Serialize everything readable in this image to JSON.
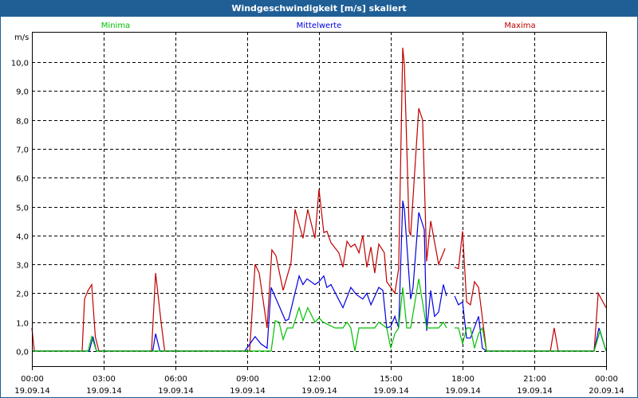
{
  "window": {
    "title": "Windgeschwindigkeit [m/s] skaliert"
  },
  "chart_data": {
    "type": "line",
    "title": "Windgeschwindigkeit [m/s] skaliert",
    "ylabel": "m/s",
    "xlabel": "",
    "ylim": [
      0,
      10.5
    ],
    "xlim_hours": [
      0,
      24
    ],
    "grid": true,
    "y_ticks": [
      {
        "v": 0,
        "label": "0,0"
      },
      {
        "v": 1,
        "label": "1,0"
      },
      {
        "v": 2,
        "label": "2,0"
      },
      {
        "v": 3,
        "label": "3,0"
      },
      {
        "v": 4,
        "label": "4,0"
      },
      {
        "v": 5,
        "label": "5,0"
      },
      {
        "v": 6,
        "label": "6,0"
      },
      {
        "v": 7,
        "label": "7,0"
      },
      {
        "v": 8,
        "label": "8,0"
      },
      {
        "v": 9,
        "label": "9,0"
      },
      {
        "v": 10,
        "label": "10,0"
      }
    ],
    "x_ticks": [
      {
        "h": 0,
        "time": "00:00",
        "date": "19.09.14"
      },
      {
        "h": 3,
        "time": "03:00",
        "date": "19.09.14"
      },
      {
        "h": 6,
        "time": "06:00",
        "date": "19.09.14"
      },
      {
        "h": 9,
        "time": "09:00",
        "date": "19.09.14"
      },
      {
        "h": 12,
        "time": "12:00",
        "date": "19.09.14"
      },
      {
        "h": 15,
        "time": "15:00",
        "date": "19.09.14"
      },
      {
        "h": 18,
        "time": "18:00",
        "date": "19.09.14"
      },
      {
        "h": 21,
        "time": "21:00",
        "date": "19.09.14"
      },
      {
        "h": 24,
        "time": "00:00",
        "date": "20.09.14"
      }
    ],
    "legend_placement": "top",
    "series": [
      {
        "name": "Maxima",
        "color": "#c00000",
        "points": [
          [
            0,
            0.8
          ],
          [
            0.1,
            0
          ],
          [
            2.1,
            0
          ],
          [
            2.2,
            1.8
          ],
          [
            2.35,
            2.1
          ],
          [
            2.5,
            2.3
          ],
          [
            2.65,
            0.5
          ],
          [
            2.8,
            0
          ],
          [
            5,
            0
          ],
          [
            5.17,
            2.7
          ],
          [
            5.4,
            1.0
          ],
          [
            5.55,
            0
          ],
          [
            9.1,
            0
          ],
          [
            9.33,
            3.0
          ],
          [
            9.5,
            2.7
          ],
          [
            9.83,
            0.8
          ],
          [
            10.03,
            3.5
          ],
          [
            10.2,
            3.3
          ],
          [
            10.5,
            2.1
          ],
          [
            10.83,
            3.05
          ],
          [
            11,
            4.9
          ],
          [
            11.33,
            3.9
          ],
          [
            11.53,
            4.9
          ],
          [
            11.83,
            3.9
          ],
          [
            12,
            5.6
          ],
          [
            12.2,
            4.1
          ],
          [
            12.33,
            4.15
          ],
          [
            12.5,
            3.75
          ],
          [
            12.83,
            3.4
          ],
          [
            13,
            2.9
          ],
          [
            13.17,
            3.8
          ],
          [
            13.33,
            3.6
          ],
          [
            13.5,
            3.7
          ],
          [
            13.67,
            3.4
          ],
          [
            13.83,
            4.0
          ],
          [
            14,
            2.9
          ],
          [
            14.17,
            3.6
          ],
          [
            14.33,
            2.7
          ],
          [
            14.5,
            3.7
          ],
          [
            14.73,
            3.4
          ],
          [
            14.83,
            2.4
          ],
          [
            15.17,
            2.0
          ],
          [
            15.33,
            2.85
          ],
          [
            15.5,
            10.5
          ],
          [
            15.57,
            9.9
          ],
          [
            15.77,
            4.15
          ],
          [
            15.83,
            4.0
          ],
          [
            16.17,
            8.4
          ],
          [
            16.33,
            8.0
          ],
          [
            16.5,
            3.1
          ],
          [
            16.67,
            4.5
          ],
          [
            17,
            3.0
          ],
          [
            17.27,
            3.55
          ],
          null,
          [
            17.67,
            2.9
          ],
          [
            17.83,
            2.85
          ],
          [
            18,
            4.15
          ],
          [
            18.17,
            1.7
          ],
          [
            18.33,
            1.6
          ],
          [
            18.5,
            2.4
          ],
          [
            18.67,
            2.2
          ],
          [
            19,
            0
          ],
          [
            21.67,
            0
          ],
          [
            21.83,
            0.8
          ],
          [
            22,
            0
          ],
          [
            23.5,
            0
          ],
          [
            23.67,
            2.0
          ],
          [
            24,
            1.5
          ]
        ]
      },
      {
        "name": "Mittelwerte",
        "color": "#0000e0",
        "points": [
          [
            0,
            0
          ],
          [
            2.4,
            0
          ],
          [
            2.55,
            0.5
          ],
          [
            2.7,
            0
          ],
          [
            5.05,
            0
          ],
          [
            5.17,
            0.6
          ],
          [
            5.35,
            0
          ],
          [
            8.9,
            0
          ],
          [
            9.33,
            0.5
          ],
          [
            9.57,
            0.25
          ],
          [
            9.83,
            0.1
          ],
          [
            10,
            2.2
          ],
          [
            10.6,
            1.05
          ],
          [
            10.73,
            1.1
          ],
          [
            11.17,
            2.6
          ],
          [
            11.33,
            2.3
          ],
          [
            11.5,
            2.5
          ],
          [
            11.83,
            2.3
          ],
          [
            12,
            2.4
          ],
          [
            12.2,
            2.6
          ],
          [
            12.33,
            2.2
          ],
          [
            12.5,
            2.3
          ],
          [
            13,
            1.5
          ],
          [
            13.33,
            2.2
          ],
          [
            13.57,
            1.95
          ],
          [
            13.83,
            1.8
          ],
          [
            14,
            2.0
          ],
          [
            14.17,
            1.6
          ],
          [
            14.5,
            2.2
          ],
          [
            14.67,
            2.1
          ],
          [
            14.83,
            0.8
          ],
          [
            15,
            0.85
          ],
          [
            15.17,
            1.2
          ],
          [
            15.33,
            0.8
          ],
          [
            15.5,
            5.2
          ],
          [
            15.57,
            4.9
          ],
          [
            15.83,
            1.8
          ],
          [
            15.93,
            2.2
          ],
          [
            16.17,
            4.8
          ],
          [
            16.4,
            4.2
          ],
          [
            16.5,
            0.7
          ],
          [
            16.67,
            2.1
          ],
          [
            16.83,
            1.2
          ],
          [
            17,
            1.35
          ],
          [
            17.2,
            2.3
          ],
          [
            17.33,
            1.9
          ],
          null,
          [
            17.67,
            1.9
          ],
          [
            17.83,
            1.6
          ],
          [
            18,
            1.7
          ],
          [
            18.17,
            0.45
          ],
          [
            18.33,
            0.45
          ],
          [
            18.67,
            1.2
          ],
          [
            18.83,
            0.1
          ],
          [
            19,
            0
          ],
          [
            23.5,
            0
          ],
          [
            23.7,
            0.8
          ],
          [
            23.85,
            0.4
          ],
          [
            24,
            0
          ]
        ]
      },
      {
        "name": "Minima",
        "color": "#00c000",
        "points": [
          [
            0,
            0
          ],
          [
            2.35,
            0
          ],
          [
            2.5,
            0.5
          ],
          [
            2.7,
            0
          ],
          [
            10,
            0
          ],
          [
            10.17,
            1.05
          ],
          [
            10.33,
            1.0
          ],
          [
            10.5,
            0.4
          ],
          [
            10.67,
            0.8
          ],
          [
            10.9,
            0.8
          ],
          [
            11.17,
            1.5
          ],
          [
            11.33,
            1.05
          ],
          [
            11.53,
            1.5
          ],
          [
            11.83,
            1.0
          ],
          [
            12,
            1.15
          ],
          [
            12.17,
            1.0
          ],
          [
            12.67,
            0.8
          ],
          [
            13,
            0.8
          ],
          [
            13.17,
            1.0
          ],
          [
            13.33,
            0.8
          ],
          [
            13.5,
            0
          ],
          [
            13.67,
            0.8
          ],
          [
            14.33,
            0.8
          ],
          [
            14.5,
            1.0
          ],
          [
            14.83,
            0.8
          ],
          [
            15,
            0.1
          ],
          [
            15.17,
            0.6
          ],
          [
            15.33,
            0.8
          ],
          [
            15.5,
            2.2
          ],
          [
            15.67,
            0.8
          ],
          [
            15.83,
            0.8
          ],
          [
            16.17,
            2.5
          ],
          [
            16.5,
            0.8
          ],
          [
            17,
            0.8
          ],
          [
            17.2,
            1.0
          ],
          [
            17.33,
            0.8
          ],
          null,
          [
            17.67,
            0.8
          ],
          [
            17.83,
            0.8
          ],
          [
            18,
            0.25
          ],
          [
            18.17,
            0.8
          ],
          [
            18.33,
            0.8
          ],
          [
            18.5,
            0.1
          ],
          [
            18.67,
            0.6
          ],
          [
            18.83,
            0.8
          ],
          [
            19,
            0
          ],
          [
            23.5,
            0
          ],
          [
            23.75,
            0.7
          ],
          [
            24,
            0
          ]
        ]
      }
    ]
  }
}
